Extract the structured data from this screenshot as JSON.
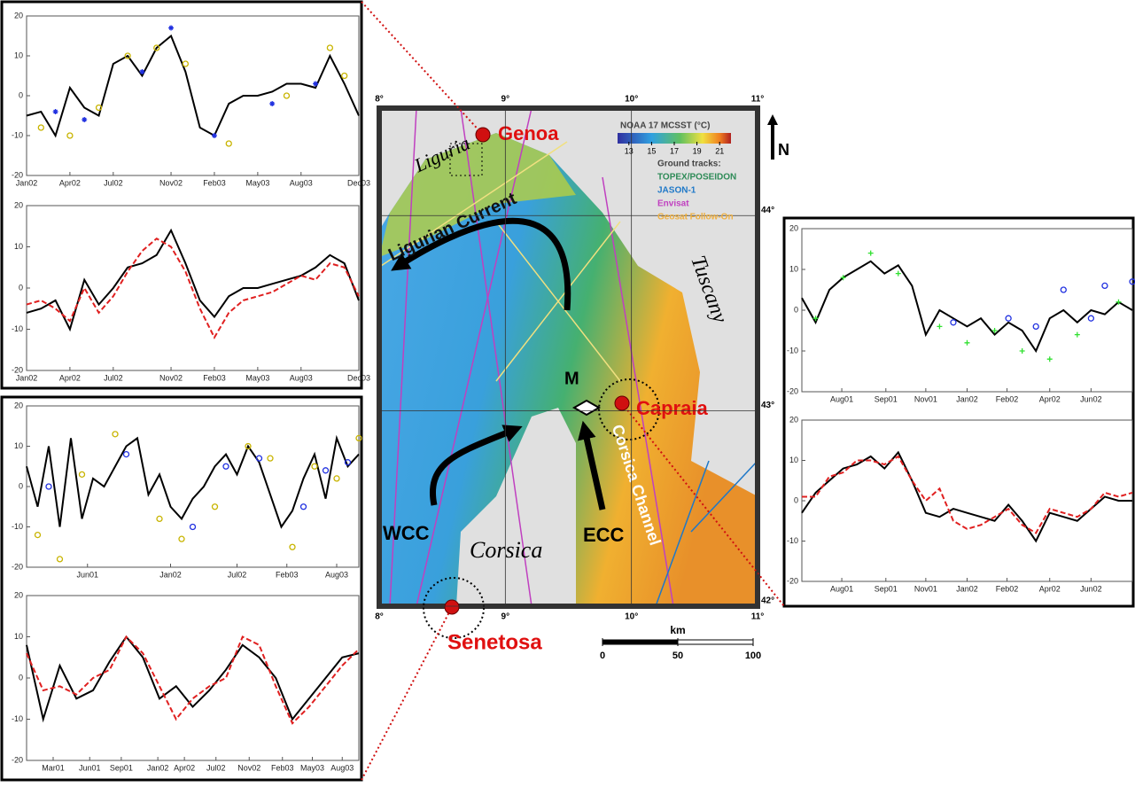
{
  "chart_data": [
    {
      "type": "line",
      "xlim": [
        0,
        23
      ],
      "ylim": [
        -20,
        20
      ],
      "yticks": [
        -20,
        -10,
        0,
        10,
        20
      ],
      "xticks": [
        {
          "value": 0,
          "label": "Jan02"
        },
        {
          "value": 3,
          "label": "Apr02"
        },
        {
          "value": 6,
          "label": "Jul02"
        },
        {
          "value": 10,
          "label": "Nov02"
        },
        {
          "value": 13,
          "label": "Feb03"
        },
        {
          "value": 16,
          "label": "May03"
        },
        {
          "value": 19,
          "label": "Aug03"
        },
        {
          "value": 23,
          "label": "Dec03"
        }
      ],
      "x": [
        0,
        1,
        2,
        3,
        4,
        5,
        6,
        7,
        8,
        9,
        10,
        11,
        12,
        13,
        14,
        15,
        16,
        17,
        18,
        19,
        20,
        21,
        22,
        23
      ],
      "series": [
        {
          "color": "#000000",
          "values": [
            -5,
            -4,
            -10,
            2,
            -3,
            -5,
            8,
            10,
            5,
            12,
            15,
            6,
            -8,
            -10,
            -2,
            0,
            0,
            1,
            3,
            3,
            2,
            10,
            3,
            -5
          ]
        },
        {
          "color": "#c8b400",
          "marker": "circle",
          "x": [
            1,
            3,
            5,
            7,
            9,
            11,
            14,
            18,
            21,
            22
          ],
          "values": [
            -8,
            -10,
            -3,
            10,
            12,
            8,
            -12,
            0,
            12,
            5
          ]
        },
        {
          "color": "#2030e0",
          "marker": "star",
          "x": [
            2,
            4,
            8,
            10,
            13,
            17,
            20
          ],
          "values": [
            -4,
            -6,
            6,
            17,
            -10,
            -2,
            3
          ]
        }
      ]
    },
    {
      "type": "line",
      "xlim": [
        0,
        23
      ],
      "ylim": [
        -20,
        20
      ],
      "yticks": [
        -20,
        -10,
        0,
        10,
        20
      ],
      "xticks": [
        {
          "value": 0,
          "label": "Jan02"
        },
        {
          "value": 3,
          "label": "Apr02"
        },
        {
          "value": 6,
          "label": "Jul02"
        },
        {
          "value": 10,
          "label": "Nov02"
        },
        {
          "value": 13,
          "label": "Feb03"
        },
        {
          "value": 16,
          "label": "May03"
        },
        {
          "value": 19,
          "label": "Aug03"
        },
        {
          "value": 23,
          "label": "Dec03"
        }
      ],
      "x": [
        0,
        1,
        2,
        3,
        4,
        5,
        6,
        7,
        8,
        9,
        10,
        11,
        12,
        13,
        14,
        15,
        16,
        17,
        18,
        19,
        20,
        21,
        22,
        23
      ],
      "series": [
        {
          "color": "#000000",
          "values": [
            -6,
            -5,
            -3,
            -10,
            2,
            -4,
            0,
            5,
            6,
            8,
            14,
            6,
            -3,
            -7,
            -2,
            0,
            0,
            1,
            2,
            3,
            5,
            8,
            6,
            -3
          ]
        },
        {
          "color": "#e02020",
          "dash": true,
          "values": [
            -4,
            -3,
            -5,
            -8,
            0,
            -6,
            -2,
            4,
            9,
            12,
            10,
            4,
            -5,
            -12,
            -6,
            -3,
            -2,
            -1,
            1,
            3,
            2,
            6,
            5,
            -2
          ]
        }
      ]
    },
    {
      "type": "line",
      "xlim": [
        0,
        30
      ],
      "ylim": [
        -20,
        20
      ],
      "yticks": [
        -20,
        -10,
        0,
        10,
        20
      ],
      "xticks": [
        {
          "value": 5.5,
          "label": "Jun01"
        },
        {
          "value": 13,
          "label": "Jan02"
        },
        {
          "value": 19,
          "label": "Jul02"
        },
        {
          "value": 23.5,
          "label": "Feb03"
        },
        {
          "value": 28,
          "label": "Aug03"
        }
      ],
      "x": [
        0,
        1,
        2,
        3,
        4,
        5,
        6,
        7,
        8,
        9,
        10,
        11,
        12,
        13,
        14,
        15,
        16,
        17,
        18,
        19,
        20,
        21,
        22,
        23,
        24,
        25,
        26,
        27,
        28,
        29,
        30
      ],
      "series": [
        {
          "color": "#000000",
          "values": [
            5,
            -5,
            10,
            -10,
            12,
            -8,
            2,
            0,
            5,
            10,
            12,
            -2,
            3,
            -5,
            -8,
            -3,
            0,
            5,
            8,
            3,
            10,
            6,
            -2,
            -10,
            -6,
            2,
            8,
            -3,
            12,
            5,
            8
          ]
        },
        {
          "color": "#c8b400",
          "marker": "circle",
          "x": [
            1,
            3,
            5,
            8,
            12,
            14,
            17,
            20,
            22,
            24,
            26,
            28,
            30
          ],
          "values": [
            -12,
            -18,
            3,
            13,
            -8,
            -13,
            -5,
            10,
            7,
            -15,
            5,
            2,
            12
          ]
        },
        {
          "color": "#2030e0",
          "marker": "circle",
          "x": [
            2,
            9,
            15,
            18,
            21,
            25,
            27,
            29
          ],
          "values": [
            0,
            8,
            -10,
            5,
            7,
            -5,
            4,
            6
          ]
        }
      ]
    },
    {
      "type": "line",
      "xlim": [
        0,
        40
      ],
      "ylim": [
        -20,
        20
      ],
      "yticks": [
        -20,
        -10,
        0,
        10,
        20
      ],
      "xticks": [
        {
          "value": 3.2,
          "label": "Mar01"
        },
        {
          "value": 7.6,
          "label": "Jun01"
        },
        {
          "value": 11.4,
          "label": "Sep01"
        },
        {
          "value": 15.8,
          "label": "Jan02"
        },
        {
          "value": 19,
          "label": "Apr02"
        },
        {
          "value": 22.8,
          "label": "Jul02"
        },
        {
          "value": 26.8,
          "label": "Nov02"
        },
        {
          "value": 30.8,
          "label": "Feb03"
        },
        {
          "value": 34.4,
          "label": "May03"
        },
        {
          "value": 38,
          "label": "Aug03"
        }
      ],
      "x": [
        0,
        2,
        4,
        6,
        8,
        10,
        12,
        14,
        16,
        18,
        20,
        22,
        24,
        26,
        28,
        30,
        32,
        34,
        36,
        38,
        40
      ],
      "series": [
        {
          "color": "#000000",
          "values": [
            8,
            -10,
            3,
            -5,
            -3,
            4,
            10,
            5,
            -5,
            -2,
            -7,
            -3,
            2,
            8,
            5,
            0,
            -10,
            -5,
            0,
            5,
            6
          ]
        },
        {
          "color": "#e02020",
          "dash": true,
          "values": [
            6,
            -3,
            -2,
            -4,
            0,
            2,
            10,
            6,
            -2,
            -10,
            -5,
            -2,
            0,
            10,
            8,
            -2,
            -11,
            -7,
            -2,
            3,
            7
          ]
        }
      ]
    },
    {
      "type": "line",
      "xlim": [
        0,
        24
      ],
      "ylim": [
        -20,
        20
      ],
      "yticks": [
        -20,
        -10,
        0,
        10,
        20
      ],
      "xticks": [
        {
          "value": 2.9,
          "label": "Aug01"
        },
        {
          "value": 6.1,
          "label": "Sep01"
        },
        {
          "value": 9,
          "label": "Nov01"
        },
        {
          "value": 12,
          "label": "Jan02"
        },
        {
          "value": 14.9,
          "label": "Feb02"
        },
        {
          "value": 18,
          "label": "Apr02"
        },
        {
          "value": 21,
          "label": "Jun02"
        }
      ],
      "x": [
        0,
        1,
        2,
        3,
        4,
        5,
        6,
        7,
        8,
        9,
        10,
        11,
        12,
        13,
        14,
        15,
        16,
        17,
        18,
        19,
        20,
        21,
        22,
        23,
        24
      ],
      "series": [
        {
          "color": "#000000",
          "values": [
            3,
            -3,
            5,
            8,
            10,
            12,
            9,
            11,
            6,
            -6,
            0,
            -2,
            -4,
            -2,
            -6,
            -3,
            -5,
            -10,
            -2,
            0,
            -3,
            0,
            -1,
            2,
            0
          ]
        },
        {
          "color": "#30e030",
          "marker": "plus",
          "x": [
            1,
            3,
            5,
            7,
            10,
            12,
            14,
            16,
            18,
            20,
            23
          ],
          "values": [
            -2,
            8,
            14,
            9,
            -4,
            -8,
            -5,
            -10,
            -12,
            -6,
            2
          ]
        },
        {
          "color": "#2030e0",
          "marker": "circle",
          "x": [
            11,
            15,
            17,
            19,
            21,
            22,
            24
          ],
          "values": [
            -3,
            -2,
            -4,
            5,
            -2,
            6,
            7
          ]
        }
      ]
    },
    {
      "type": "line",
      "xlim": [
        0,
        24
      ],
      "ylim": [
        -20,
        20
      ],
      "yticks": [
        -20,
        -10,
        0,
        10,
        20
      ],
      "xticks": [
        {
          "value": 2.9,
          "label": "Aug01"
        },
        {
          "value": 6.1,
          "label": "Sep01"
        },
        {
          "value": 9,
          "label": "Nov01"
        },
        {
          "value": 12,
          "label": "Jan02"
        },
        {
          "value": 14.9,
          "label": "Feb02"
        },
        {
          "value": 18,
          "label": "Apr02"
        },
        {
          "value": 21,
          "label": "Jun02"
        }
      ],
      "x": [
        0,
        1,
        2,
        3,
        4,
        5,
        6,
        7,
        8,
        9,
        10,
        11,
        12,
        13,
        14,
        15,
        16,
        17,
        18,
        19,
        20,
        21,
        22,
        23,
        24
      ],
      "series": [
        {
          "color": "#000000",
          "values": [
            -3,
            2,
            5,
            8,
            9,
            11,
            8,
            12,
            5,
            -3,
            -4,
            -2,
            -3,
            -4,
            -5,
            -1,
            -5,
            -10,
            -3,
            -4,
            -5,
            -2,
            1,
            0,
            0
          ]
        },
        {
          "color": "#e02020",
          "dash": true,
          "values": [
            1,
            1,
            6,
            7,
            10,
            10,
            9,
            11,
            5,
            0,
            3,
            -5,
            -7,
            -6,
            -4,
            -2,
            -6,
            -8,
            -2,
            -3,
            -4,
            -2,
            2,
            1,
            2
          ]
        }
      ]
    },
    {
      "type": "map",
      "xlim": [
        8,
        11
      ],
      "ylim": [
        42,
        44.55
      ],
      "xticks": [
        {
          "value": 8,
          "label": "8°"
        },
        {
          "value": 9,
          "label": "9°"
        },
        {
          "value": 10,
          "label": "10°"
        },
        {
          "value": 11,
          "label": "11°"
        }
      ],
      "yticks": [
        {
          "value": 42,
          "label": "42°"
        },
        {
          "value": 43,
          "label": "43°"
        },
        {
          "value": 44,
          "label": "44°"
        }
      ],
      "labels": {
        "genoa": "Genoa",
        "liguria": "Liguria",
        "current": "Ligurian Current",
        "tuscany": "Tuscany",
        "m": "M",
        "capraia": "Capraia",
        "channel": "Corsica Channel",
        "wcc": "WCC",
        "ecc": "ECC",
        "corsica": "Corsica",
        "senetosa": "Senetosa",
        "north": "N"
      },
      "colorbar": {
        "title": "NOAA 17 MCSST (°C)",
        "lim": [
          12,
          22
        ],
        "ticks": [
          13,
          15,
          17,
          19,
          21
        ]
      },
      "tracks": {
        "title": "Ground tracks:",
        "names": [
          {
            "name": "TOPEX/POSEIDON",
            "color": "#2e8b57"
          },
          {
            "name": "JASON-1",
            "color": "#1e78c8"
          },
          {
            "name": "Envisat",
            "color": "#c040c0"
          },
          {
            "name": "Geosat Follow-On",
            "color": "#f0b040"
          }
        ]
      },
      "scale": {
        "label": "km",
        "lim": [
          0,
          100
        ],
        "ticks": [
          0,
          50,
          100
        ]
      }
    }
  ]
}
